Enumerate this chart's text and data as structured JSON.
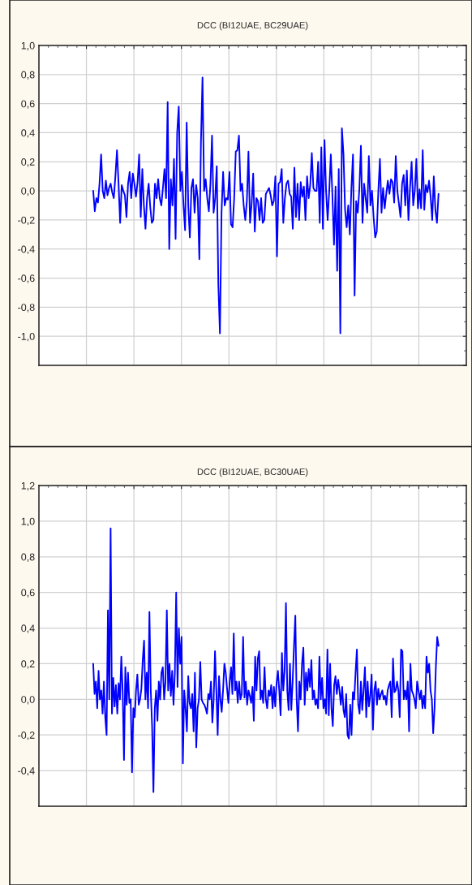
{
  "chart_data": [
    {
      "type": "line",
      "title": "DCC (BI12UAE, BC29UAE)",
      "grid": true,
      "tick_labels": "y",
      "ylim": [
        -1.2,
        1.0
      ],
      "yticks": [
        {
          "value": 1.0,
          "label": "1,0"
        },
        {
          "value": 0.8,
          "label": "0,8"
        },
        {
          "value": 0.6,
          "label": "0,6"
        },
        {
          "value": 0.4,
          "label": "0,4"
        },
        {
          "value": 0.2,
          "label": "0,2"
        },
        {
          "value": 0.0,
          "label": "0,0"
        },
        {
          "value": -0.2,
          "label": "-0,2"
        },
        {
          "value": -0.4,
          "label": "-0,4"
        },
        {
          "value": -0.6,
          "label": "-0,6"
        },
        {
          "value": -0.8,
          "label": "-0,8"
        },
        {
          "value": -1.0,
          "label": "-1,0"
        },
        {
          "value": -1.2,
          "label": null
        }
      ],
      "categories": [
        null,
        null,
        null,
        null,
        null,
        null,
        null,
        null,
        null,
        null,
        null,
        null,
        null,
        null,
        null,
        null,
        null,
        null,
        null,
        null,
        null,
        null,
        null,
        null,
        null,
        null,
        null,
        null,
        null,
        null,
        null,
        null,
        null,
        null,
        null,
        null,
        null,
        null,
        null,
        null,
        null,
        null,
        null,
        null,
        null,
        null,
        null,
        null,
        null,
        null,
        null,
        null,
        null,
        null,
        null,
        null,
        null,
        null,
        null,
        null,
        null,
        null,
        null,
        null,
        null,
        null,
        null,
        null,
        null,
        null,
        null,
        null,
        null,
        null,
        null,
        null,
        null,
        null,
        null,
        null,
        null,
        null,
        null,
        null,
        null,
        null,
        null,
        null,
        null,
        null,
        null,
        null,
        null,
        null,
        null,
        null,
        null,
        null,
        null,
        null,
        null,
        null,
        null,
        null,
        null,
        null,
        null,
        null,
        null,
        null,
        null,
        null,
        null,
        null,
        null,
        null,
        null,
        null,
        null,
        null,
        null,
        null,
        null,
        null,
        null,
        null,
        null,
        null,
        null,
        null,
        null,
        null,
        null,
        null,
        null,
        null,
        null,
        null,
        null,
        null,
        null,
        null,
        null,
        null,
        null,
        null,
        null,
        null,
        null,
        null,
        null,
        null,
        null,
        null,
        null,
        null,
        null,
        null,
        null,
        null,
        null,
        null,
        null,
        null,
        null,
        null,
        null,
        null,
        null,
        null,
        null,
        null,
        null,
        null,
        null,
        null,
        null,
        null,
        null,
        null,
        null,
        null,
        null,
        null,
        null,
        null,
        null,
        null,
        null,
        null,
        null,
        null,
        null,
        null,
        null,
        null,
        null,
        null,
        null,
        null,
        null,
        null,
        null,
        null,
        null,
        null,
        null,
        null,
        null,
        null,
        null,
        null,
        null,
        null,
        null,
        null,
        null,
        null,
        null
      ],
      "series": [
        {
          "color": "#0000ff",
          "values": [
            0.0,
            -0.14,
            -0.05,
            -0.08,
            0.05,
            0.25,
            0.0,
            -0.05,
            0.07,
            -0.03,
            0.02,
            0.05,
            -0.01,
            -0.05,
            0.1,
            0.28,
            0.05,
            -0.22,
            0.04,
            0.0,
            -0.03,
            -0.18,
            0.05,
            0.13,
            -0.05,
            0.12,
            0.05,
            -0.04,
            0.06,
            0.25,
            -0.18,
            0.15,
            -0.1,
            -0.26,
            -0.05,
            0.05,
            -0.11,
            -0.22,
            -0.2,
            0.05,
            -0.05,
            0.08,
            -0.05,
            -0.1,
            0.02,
            0.15,
            -0.05,
            0.61,
            -0.4,
            0.08,
            -0.1,
            0.22,
            -0.33,
            0.4,
            0.58,
            0.0,
            0.13,
            -0.1,
            -0.27,
            0.47,
            -0.1,
            -0.32,
            0.02,
            0.08,
            -0.15,
            0.04,
            -0.05,
            -0.47,
            0.33,
            0.78,
            0.0,
            0.08,
            -0.05,
            -0.14,
            0.05,
            0.38,
            -0.15,
            -0.05,
            0.17,
            -0.65,
            -0.98,
            -0.15,
            0.13,
            -0.1,
            -0.05,
            -0.06,
            0.13,
            -0.23,
            -0.25,
            -0.05,
            0.27,
            0.28,
            0.38,
            0.0,
            0.05,
            -0.1,
            -0.2,
            -0.07,
            0.27,
            -0.22,
            -0.09,
            0.12,
            -0.28,
            -0.05,
            -0.07,
            -0.2,
            -0.05,
            -0.22,
            -0.2,
            -0.02,
            0.0,
            0.02,
            -0.03,
            -0.1,
            -0.07,
            0.1,
            -0.45,
            0.05,
            0.06,
            0.15,
            -0.22,
            -0.05,
            0.05,
            0.07,
            -0.02,
            -0.04,
            -0.26,
            0.16,
            -0.18,
            0.05,
            -0.2,
            0.06,
            -0.04,
            0.03,
            -0.2,
            0.1,
            -0.05,
            0.04,
            0.26,
            0.02,
            0.0,
            0.0,
            0.2,
            -0.22,
            0.3,
            -0.26,
            0.35,
            0.0,
            -0.2,
            0.0,
            0.25,
            -0.03,
            -0.37,
            0.03,
            -0.55,
            0.15,
            -0.98,
            0.43,
            0.25,
            -0.13,
            -0.25,
            -0.1,
            -0.3,
            0.02,
            0.25,
            -0.72,
            -0.07,
            -0.15,
            0.01,
            0.31,
            -0.22,
            0.05,
            -0.05,
            -0.15,
            0.24,
            -0.1,
            0.0,
            -0.18,
            -0.32,
            -0.28,
            0.0,
            0.22,
            -0.15,
            0.02,
            -0.12,
            -0.02,
            0.07,
            -0.02,
            0.08,
            0.06,
            -0.08,
            0.24,
            0.0,
            -0.09,
            -0.18,
            0.05,
            0.11,
            -0.1,
            0.14,
            -0.2,
            0.02,
            0.2,
            -0.1,
            0.0,
            0.22,
            -0.12,
            0.01,
            -0.12,
            0.28,
            -0.13,
            0.04,
            -0.01,
            0.07,
            -0.04,
            -0.2,
            0.1,
            -0.13,
            -0.22,
            -0.02
          ]
        }
      ]
    },
    {
      "type": "line",
      "title": "DCC (BI12UAE, BC30UAE)",
      "grid": true,
      "tick_labels": "y",
      "ylim": [
        -0.6,
        1.2
      ],
      "yticks": [
        {
          "value": 1.2,
          "label": "1,2"
        },
        {
          "value": 1.0,
          "label": "1,0"
        },
        {
          "value": 0.8,
          "label": "0,8"
        },
        {
          "value": 0.6,
          "label": "0,6"
        },
        {
          "value": 0.4,
          "label": "0,4"
        },
        {
          "value": 0.2,
          "label": "0,2"
        },
        {
          "value": 0.0,
          "label": "0,0"
        },
        {
          "value": -0.2,
          "label": "-0,2"
        },
        {
          "value": -0.4,
          "label": "-0,4"
        },
        {
          "value": -0.6,
          "label": null
        }
      ],
      "categories": [
        null,
        null,
        null,
        null,
        null,
        null,
        null,
        null,
        null,
        null,
        null,
        null,
        null,
        null,
        null,
        null,
        null,
        null,
        null,
        null,
        null,
        null,
        null,
        null,
        null,
        null,
        null,
        null,
        null,
        null,
        null,
        null,
        null,
        null,
        null,
        null,
        null,
        null,
        null,
        null,
        null,
        null,
        null,
        null,
        null,
        null,
        null,
        null,
        null,
        null,
        null,
        null,
        null,
        null,
        null,
        null,
        null,
        null,
        null,
        null,
        null,
        null,
        null,
        null,
        null,
        null,
        null,
        null,
        null,
        null,
        null,
        null,
        null,
        null,
        null,
        null,
        null,
        null,
        null,
        null,
        null,
        null,
        null,
        null,
        null,
        null,
        null,
        null,
        null,
        null,
        null,
        null,
        null,
        null,
        null,
        null,
        null,
        null,
        null,
        null,
        null,
        null,
        null,
        null,
        null,
        null,
        null,
        null,
        null,
        null,
        null,
        null,
        null,
        null,
        null,
        null,
        null,
        null,
        null,
        null,
        null,
        null,
        null,
        null,
        null,
        null,
        null,
        null,
        null,
        null,
        null,
        null,
        null,
        null,
        null,
        null,
        null,
        null,
        null,
        null,
        null,
        null,
        null,
        null,
        null,
        null,
        null,
        null,
        null,
        null,
        null,
        null,
        null,
        null,
        null,
        null,
        null,
        null,
        null,
        null,
        null,
        null,
        null,
        null,
        null,
        null,
        null,
        null,
        null,
        null,
        null,
        null,
        null,
        null,
        null,
        null,
        null,
        null,
        null,
        null,
        null,
        null,
        null,
        null,
        null,
        null,
        null,
        null,
        null,
        null,
        null,
        null,
        null,
        null,
        null,
        null,
        null,
        null,
        null,
        null,
        null,
        null,
        null,
        null,
        null,
        null,
        null,
        null,
        null,
        null,
        null,
        null,
        null,
        null,
        null,
        null,
        null,
        null,
        null,
        null,
        null,
        null,
        null,
        null,
        null,
        null,
        null,
        null,
        null,
        null,
        null,
        null,
        null,
        null,
        null,
        null,
        null,
        null,
        null,
        null,
        null,
        null,
        null,
        null,
        null,
        null,
        null,
        null,
        null,
        null,
        null,
        null,
        null,
        null,
        null,
        null,
        null,
        null,
        null
      ],
      "series": [
        {
          "color": "#0000ff",
          "values": [
            0.2,
            0.03,
            0.1,
            -0.05,
            0.16,
            0.0,
            0.05,
            -0.08,
            0.1,
            -0.1,
            -0.2,
            0.5,
            0.0,
            0.96,
            -0.08,
            0.12,
            -0.04,
            0.08,
            -0.08,
            0.09,
            0.0,
            0.24,
            0.05,
            -0.34,
            0.18,
            -0.03,
            0.15,
            -0.02,
            0.0,
            -0.41,
            -0.05,
            -0.1,
            0.05,
            0.14,
            -0.03,
            0.0,
            0.06,
            0.22,
            0.33,
            0.0,
            0.15,
            -0.05,
            0.49,
            0.05,
            -0.15,
            -0.52,
            -0.05,
            0.05,
            -0.12,
            0.1,
            0.0,
            0.15,
            0.18,
            0.0,
            0.1,
            0.5,
            0.05,
            0.2,
            0.02,
            0.16,
            -0.03,
            0.15,
            0.6,
            0.07,
            0.4,
            0.2,
            0.35,
            -0.36,
            0.05,
            -0.05,
            -0.18,
            0.13,
            -0.02,
            -0.05,
            0.03,
            -0.18,
            0.15,
            -0.27,
            -0.05,
            0.0,
            0.21,
            0.0,
            -0.02,
            -0.03,
            -0.05,
            -0.08,
            0.03,
            0.0,
            0.1,
            -0.13,
            0.0,
            0.27,
            0.05,
            -0.2,
            0.13,
            0.0,
            -0.07,
            0.05,
            0.2,
            0.15,
            0.06,
            -0.02,
            0.1,
            0.18,
            0.03,
            0.37,
            0.05,
            0.1,
            -0.02,
            0.1,
            0.0,
            0.03,
            0.35,
            0.01,
            0.1,
            -0.03,
            0.05,
            0.02,
            -0.02,
            0.07,
            -0.12,
            0.24,
            0.05,
            0.23,
            0.27,
            0.0,
            0.05,
            -0.02,
            0.18,
            0.0,
            -0.05,
            0.05,
            0.02,
            0.08,
            -0.05,
            0.07,
            -0.04,
            0.09,
            0.16,
            0.05,
            -0.09,
            0.26,
            0.05,
            0.16,
            0.54,
            0.05,
            -0.06,
            0.2,
            -0.06,
            0.1,
            0.3,
            0.47,
            0.0,
            -0.18,
            0.1,
            0.0,
            0.2,
            0.29,
            -0.03,
            0.15,
            0.05,
            0.17,
            0.07,
            0.22,
            0.0,
            0.05,
            -0.03,
            0.0,
            -0.05,
            0.24,
            0.0,
            0.12,
            -0.05,
            0.0,
            -0.08,
            0.28,
            -0.09,
            0.2,
            -0.05,
            -0.15,
            0.08,
            0.13,
            0.03,
            0.11,
            0.05,
            -0.03,
            0.07,
            -0.06,
            -0.1,
            0.03,
            -0.2,
            -0.22,
            -0.03,
            -0.2,
            0.04,
            0.0,
            0.15,
            0.28,
            -0.03,
            -0.08,
            0.1,
            -0.06,
            0.05,
            0.18,
            -0.1,
            0.1,
            -0.04,
            0.02,
            0.14,
            -0.17,
            0.05,
            0.1,
            -0.03,
            0.06,
            0.0,
            0.03,
            0.05,
            0.0,
            0.02,
            -0.03,
            0.05,
            0.08,
            0.1,
            -0.1,
            0.23,
            0.04,
            0.05,
            0.1,
            0.05,
            -0.1,
            0.28,
            0.27,
            0.0,
            0.05,
            0.0,
            0.1,
            -0.18,
            0.2,
            0.05,
            0.03,
            0.0,
            -0.05,
            0.1,
            0.05,
            0.0,
            0.05,
            -0.05,
            0.02,
            -0.05,
            0.24,
            0.15,
            0.2,
            0.05,
            0.0,
            -0.19,
            -0.05,
            0.18,
            0.35,
            0.3
          ]
        }
      ]
    }
  ]
}
